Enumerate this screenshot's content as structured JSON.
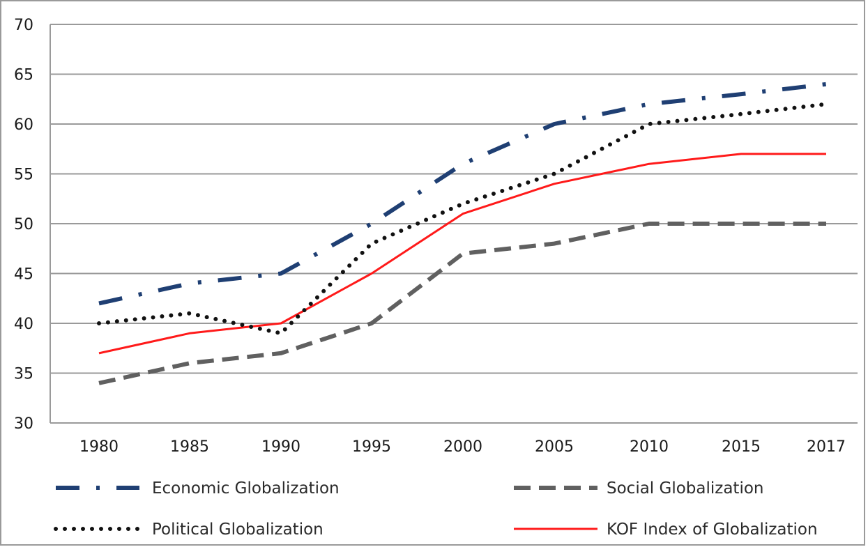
{
  "chart_data": {
    "type": "line",
    "x": [
      "1980",
      "1985",
      "1990",
      "1995",
      "2000",
      "2005",
      "2010",
      "2015",
      "2017"
    ],
    "ylim": [
      30,
      70
    ],
    "yticks": [
      "30",
      "35",
      "40",
      "45",
      "50",
      "55",
      "60",
      "65",
      "70"
    ],
    "grid": true,
    "legend_position": "bottom",
    "series": [
      {
        "name": "Economic Globalization",
        "color": "#1f3f73",
        "style": "dash-dot",
        "values": [
          42,
          44,
          45,
          50,
          56,
          60,
          62,
          63,
          64
        ]
      },
      {
        "name": "Social Globalization",
        "color": "#606060",
        "style": "dash",
        "values": [
          34,
          36,
          37,
          40,
          47,
          48,
          50,
          50,
          50
        ]
      },
      {
        "name": "Political Globalization",
        "color": "#111111",
        "style": "dot",
        "values": [
          40,
          41,
          39,
          48,
          52,
          55,
          60,
          61,
          62
        ]
      },
      {
        "name": "KOF Index of Globalization",
        "color": "#ff1a1a",
        "style": "solid",
        "values": [
          37,
          39,
          40,
          45,
          51,
          54,
          56,
          57,
          57
        ]
      }
    ]
  }
}
